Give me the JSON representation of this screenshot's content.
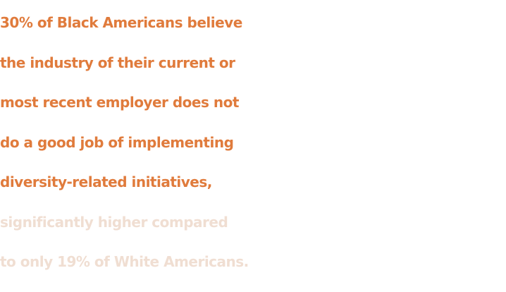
{
  "statement": {
    "primary_lines": [
      "30% of Black Americans believe",
      "the industry of their current or",
      "most recent employer does not",
      "do a good job of implementing",
      "diversity-related initiatives,"
    ],
    "secondary_lines": [
      "significantly higher compared",
      "to only 19% of White Americans."
    ]
  },
  "colors": {
    "primary_text": "#e07b3c",
    "secondary_text": "#f0ded2",
    "background": "#ffffff"
  }
}
